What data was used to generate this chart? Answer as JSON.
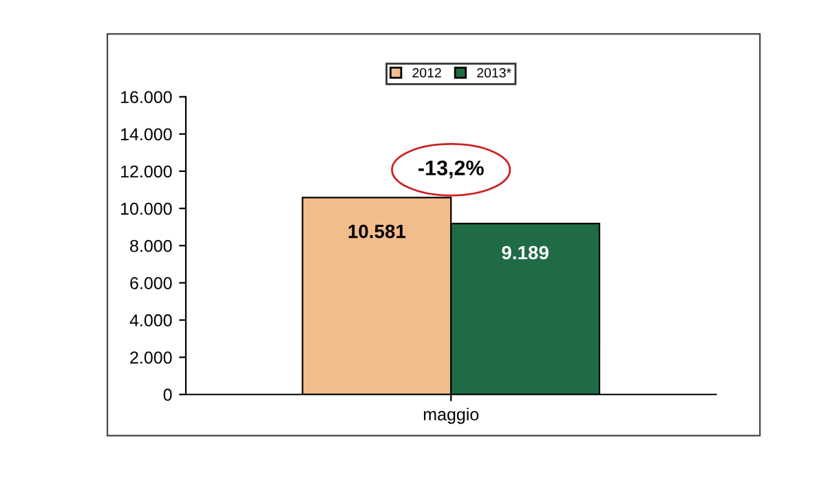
{
  "chart_data": {
    "type": "bar",
    "categories": [
      "maggio"
    ],
    "series": [
      {
        "name": "2012",
        "color": "#f2bd8c",
        "values": [
          10581
        ],
        "value_labels": [
          "10.581"
        ]
      },
      {
        "name": "2013*",
        "color": "#1f6b45",
        "values": [
          9189
        ],
        "value_labels": [
          "9.189"
        ]
      }
    ],
    "ylim": [
      0,
      16000
    ],
    "yticks": [
      {
        "value": 0,
        "label": "0"
      },
      {
        "value": 2000,
        "label": "2.000"
      },
      {
        "value": 4000,
        "label": "4.000"
      },
      {
        "value": 6000,
        "label": "6.000"
      },
      {
        "value": 8000,
        "label": "8.000"
      },
      {
        "value": 10000,
        "label": "10.000"
      },
      {
        "value": 12000,
        "label": "12.000"
      },
      {
        "value": 14000,
        "label": "14.000"
      },
      {
        "value": 16000,
        "label": "16.000"
      }
    ],
    "annotations": [
      "-13,2%"
    ],
    "legend": "top",
    "grid": false
  }
}
